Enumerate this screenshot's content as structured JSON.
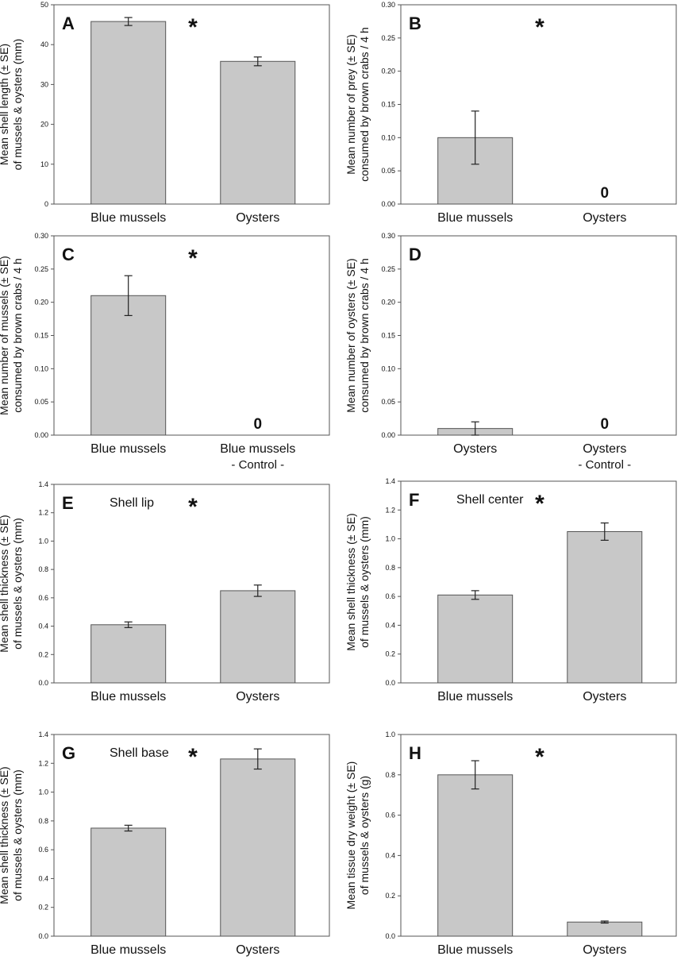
{
  "chart_data": [
    {
      "type": "bar",
      "panel": "A",
      "subtitle": "",
      "categories": [
        "Blue mussels",
        "Oysters"
      ],
      "values": [
        45.8,
        35.8
      ],
      "errors": [
        1.0,
        1.1
      ],
      "ylabel": [
        "Mean shell length (± SE)",
        "of mussels & oysters (mm)"
      ],
      "ylim": [
        0,
        50
      ],
      "yticks": [
        "0",
        "10",
        "20",
        "30",
        "40",
        "50"
      ],
      "significance": "*",
      "zero_labels": [
        "",
        ""
      ]
    },
    {
      "type": "bar",
      "panel": "B",
      "subtitle": "",
      "categories": [
        "Blue mussels",
        "Oysters"
      ],
      "values": [
        0.1,
        0
      ],
      "errors": [
        0.04,
        0
      ],
      "ylabel": [
        "Mean number of prey (± SE)",
        "consumed by brown crabs / 4 h"
      ],
      "ylim": [
        0,
        0.3
      ],
      "yticks": [
        "0.00",
        "0.05",
        "0.10",
        "0.15",
        "0.20",
        "0.25",
        "0.30"
      ],
      "significance": "*",
      "zero_labels": [
        "",
        "0"
      ]
    },
    {
      "type": "bar",
      "panel": "C",
      "subtitle": "",
      "categories": [
        "Blue mussels",
        "Blue mussels"
      ],
      "category_sublabels": [
        "",
        "- Control -"
      ],
      "values": [
        0.21,
        0
      ],
      "errors": [
        0.03,
        0
      ],
      "ylabel": [
        "Mean number of mussels (± SE)",
        "consumed by brown crabs / 4 h"
      ],
      "ylim": [
        0,
        0.3
      ],
      "yticks": [
        "0.00",
        "0.05",
        "0.10",
        "0.15",
        "0.20",
        "0.25",
        "0.30"
      ],
      "significance": "*",
      "zero_labels": [
        "",
        "0"
      ]
    },
    {
      "type": "bar",
      "panel": "D",
      "subtitle": "",
      "categories": [
        "Oysters",
        "Oysters"
      ],
      "category_sublabels": [
        "",
        "- Control -"
      ],
      "values": [
        0.01,
        0
      ],
      "errors": [
        0.01,
        0
      ],
      "ylabel": [
        "Mean number of oysters (± SE)",
        "consumed by brown crabs / 4 h"
      ],
      "ylim": [
        0,
        0.3
      ],
      "yticks": [
        "0.00",
        "0.05",
        "0.10",
        "0.15",
        "0.20",
        "0.25",
        "0.30"
      ],
      "significance": "",
      "zero_labels": [
        "",
        "0"
      ]
    },
    {
      "type": "bar",
      "panel": "E",
      "subtitle": "Shell lip",
      "categories": [
        "Blue mussels",
        "Oysters"
      ],
      "values": [
        0.41,
        0.65
      ],
      "errors": [
        0.02,
        0.04
      ],
      "ylabel": [
        "Mean shell thickness (± SE)",
        "of mussels & oysters (mm)"
      ],
      "ylim": [
        0,
        1.4
      ],
      "yticks": [
        "0.0",
        "0.2",
        "0.4",
        "0.6",
        "0.8",
        "1.0",
        "1.2",
        "1.4"
      ],
      "significance": "*",
      "zero_labels": [
        "",
        ""
      ]
    },
    {
      "type": "bar",
      "panel": "F",
      "subtitle": "Shell center",
      "categories": [
        "Blue mussels",
        "Oysters"
      ],
      "values": [
        0.61,
        1.05
      ],
      "errors": [
        0.03,
        0.06
      ],
      "ylabel": [
        "Mean shell thickness (± SE)",
        "of mussels & oysters (mm)"
      ],
      "ylim": [
        0,
        1.4
      ],
      "yticks": [
        "0.0",
        "0.2",
        "0.4",
        "0.6",
        "0.8",
        "1.0",
        "1.2",
        "1.4"
      ],
      "significance": "*",
      "zero_labels": [
        "",
        ""
      ]
    },
    {
      "type": "bar",
      "panel": "G",
      "subtitle": "Shell base",
      "categories": [
        "Blue mussels",
        "Oysters"
      ],
      "values": [
        0.75,
        1.23
      ],
      "errors": [
        0.02,
        0.07
      ],
      "ylabel": [
        "Mean shell thickness (± SE)",
        "of mussels & oysters (mm)"
      ],
      "ylim": [
        0,
        1.4
      ],
      "yticks": [
        "0.0",
        "0.2",
        "0.4",
        "0.6",
        "0.8",
        "1.0",
        "1.2",
        "1.4"
      ],
      "significance": "*",
      "zero_labels": [
        "",
        ""
      ]
    },
    {
      "type": "bar",
      "panel": "H",
      "subtitle": "",
      "categories": [
        "Blue mussels",
        "Oysters"
      ],
      "values": [
        0.8,
        0.07
      ],
      "errors": [
        0.07,
        0.005
      ],
      "ylabel": [
        "Mean tissue dry weight (± SE)",
        "of mussels & oysters (g)"
      ],
      "ylim": [
        0,
        1.0
      ],
      "yticks": [
        "0.0",
        "0.2",
        "0.4",
        "0.6",
        "0.8",
        "1.0"
      ],
      "significance": "*",
      "zero_labels": [
        "",
        ""
      ]
    }
  ]
}
